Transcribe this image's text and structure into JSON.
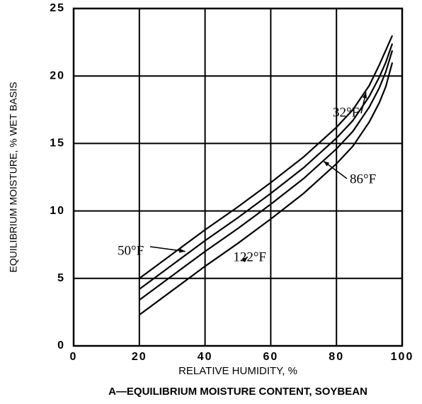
{
  "chart_data": {
    "type": "line",
    "title": "A—EQUILIBRIUM MOISTURE CONTENT, SOYBEAN",
    "x_label": "RELATIVE HUMIDITY, %",
    "y_label": "EQUILIBRIUM MOISTURE, % WET BASIS",
    "x": [
      20,
      30,
      40,
      50,
      60,
      70,
      80,
      85,
      90,
      93,
      95,
      97
    ],
    "series": [
      {
        "name": "32°F",
        "color": "#000000",
        "values": [
          5.0,
          6.8,
          8.6,
          10.3,
          12.1,
          14.0,
          16.2,
          17.5,
          19.3,
          20.8,
          21.9,
          23.0
        ]
      },
      {
        "name": "50°F",
        "color": "#000000",
        "values": [
          4.2,
          6.0,
          7.8,
          9.5,
          11.3,
          13.2,
          15.4,
          16.7,
          18.5,
          19.9,
          21.0,
          22.4
        ]
      },
      {
        "name": "86°F",
        "color": "#000000",
        "values": [
          3.4,
          5.2,
          7.0,
          8.7,
          10.5,
          12.4,
          14.6,
          15.9,
          17.7,
          19.1,
          20.3,
          21.9
        ]
      },
      {
        "name": "122°F",
        "color": "#000000",
        "values": [
          2.3,
          4.1,
          5.9,
          7.6,
          9.4,
          11.3,
          13.5,
          14.8,
          16.6,
          18.0,
          19.2,
          21.0
        ]
      }
    ],
    "xlim": [
      0,
      100
    ],
    "xticks": [
      0,
      20,
      40,
      60,
      80,
      100
    ],
    "ylim": [
      0,
      25
    ],
    "yticks": [
      0,
      5,
      10,
      15,
      20,
      25
    ],
    "grid": true
  }
}
